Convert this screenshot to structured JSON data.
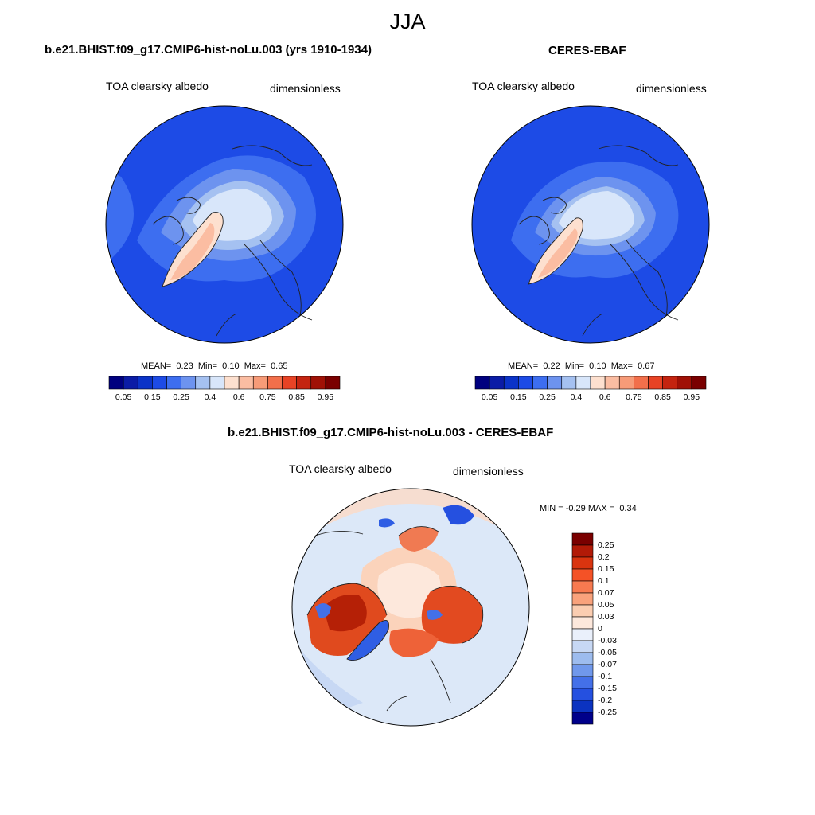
{
  "season": "JJA",
  "panels": [
    {
      "title": "b.e21.BHIST.f09_g17.CMIP6-hist-noLu.003 (yrs 1910-1934)",
      "variable": "TOA clearsky albedo",
      "units": "dimensionless",
      "stats": {
        "mean_label": "MEAN=",
        "mean": "0.23",
        "min_label": "Min=",
        "min": "0.10",
        "max_label": "Max=",
        "max": "0.65"
      }
    },
    {
      "title": "CERES-EBAF",
      "variable": "TOA clearsky albedo",
      "units": "dimensionless",
      "stats": {
        "mean_label": "MEAN=",
        "mean": "0.22",
        "min_label": "Min=",
        "min": "0.10",
        "max_label": "Max=",
        "max": "0.67"
      }
    }
  ],
  "diff": {
    "title": "b.e21.BHIST.f09_g17.CMIP6-hist-noLu.003 - CERES-EBAF",
    "variable": "TOA clearsky albedo",
    "units": "dimensionless",
    "stats": {
      "min_label": "MIN =",
      "min": "-0.29",
      "max_label": "MAX =",
      "max": "0.34"
    }
  },
  "colorbar_abs": {
    "colors": [
      "#00007f",
      "#0b1ca6",
      "#0b33c8",
      "#1d4be6",
      "#3d6ef0",
      "#6d93ef",
      "#a5c1f1",
      "#d8e6fa",
      "#fde0cf",
      "#fbbda2",
      "#f79b78",
      "#f26f4b",
      "#e84325",
      "#c42410",
      "#a01106",
      "#7a0000"
    ],
    "labels": [
      "0.05",
      "0.15",
      "0.25",
      "0.4",
      "0.6",
      "0.75",
      "0.85",
      "0.95"
    ]
  },
  "colorbar_diff": {
    "colors": [
      "#7a0000",
      "#b21a07",
      "#d9340f",
      "#f45226",
      "#f77a50",
      "#f9a27c",
      "#fbcdb1",
      "#fde8dc",
      "#eaf0fb",
      "#c7d8f4",
      "#9dbcee",
      "#7098eb",
      "#4470e8",
      "#2550e0",
      "#0b33c0",
      "#00008a"
    ],
    "labels": [
      "0.25",
      "0.2",
      "0.15",
      "0.1",
      "0.07",
      "0.05",
      "0.03",
      "0",
      "-0.03",
      "-0.05",
      "-0.07",
      "-0.1",
      "-0.15",
      "-0.2",
      "-0.25"
    ]
  }
}
